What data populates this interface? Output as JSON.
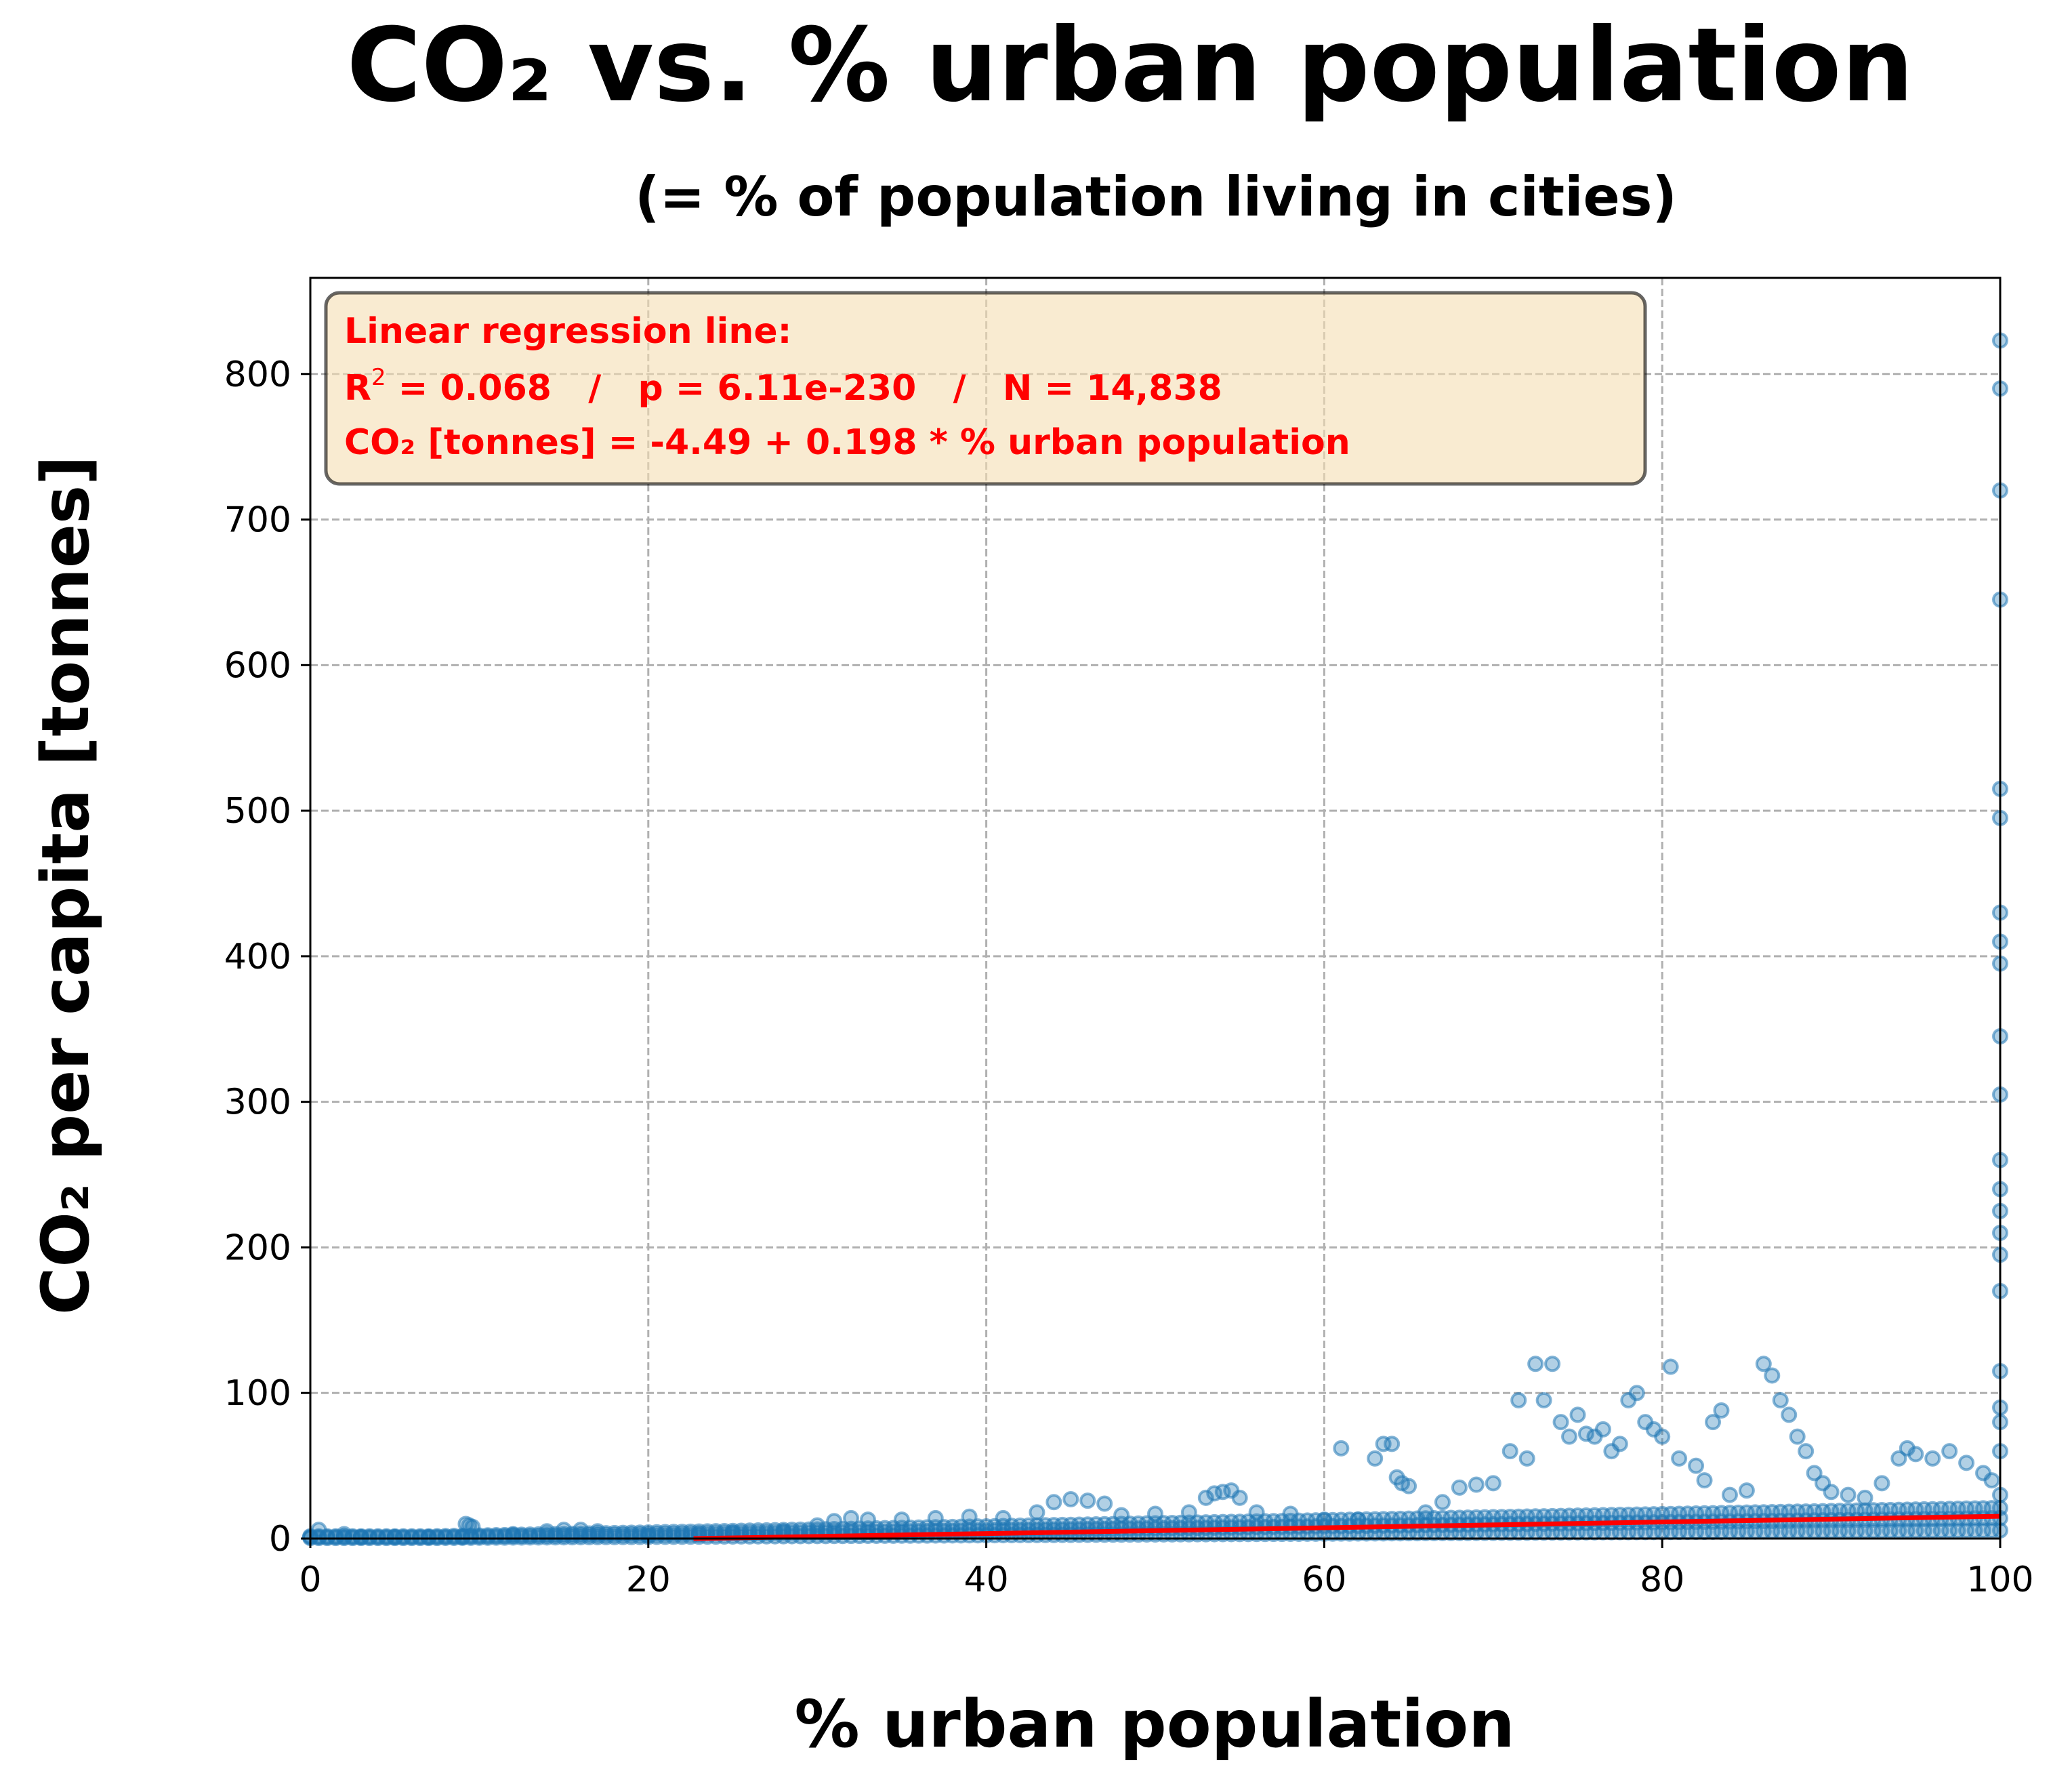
{
  "chart_data": {
    "type": "scatter",
    "title": "CO₂ vs. % urban population",
    "subtitle": "(= % of population living in cities)",
    "xlabel": "% urban population",
    "ylabel": "CO₂ per capita [tonnes]",
    "xlim": [
      0,
      100
    ],
    "ylim": [
      0,
      866
    ],
    "x_ticks": [
      0,
      20,
      40,
      60,
      80,
      100
    ],
    "y_ticks": [
      0,
      100,
      200,
      300,
      400,
      500,
      600,
      700,
      800
    ],
    "grid": true,
    "colors": {
      "points": "#1f77b4",
      "regression": "#ff0000",
      "annotation": "#ff0000",
      "annotation_box": "#f5deb3"
    },
    "annotation": {
      "line1": "Linear regression line:",
      "line2_prefix": "R",
      "line2_sup": "2",
      "line2_rest": " = 0.068   /   p = 6.11e-230   /   N = 14,838",
      "line3": "CO₂ [tonnes] = -4.49 + 0.198 * % urban population",
      "placement": "top-left"
    },
    "regression": {
      "intercept": -4.49,
      "slope": 0.198
    },
    "series": [
      {
        "values": [
          [
            0.5,
            6
          ],
          [
            2,
            3
          ],
          [
            3,
            1
          ],
          [
            5,
            1
          ],
          [
            7,
            1
          ],
          [
            9,
            1
          ],
          [
            9.2,
            10
          ],
          [
            9.4,
            9
          ],
          [
            9.6,
            8
          ],
          [
            12,
            3
          ],
          [
            14,
            5
          ],
          [
            15,
            6
          ],
          [
            16,
            6
          ],
          [
            17,
            5
          ],
          [
            20,
            2
          ],
          [
            23,
            3
          ],
          [
            25,
            4
          ],
          [
            28,
            5
          ],
          [
            30,
            9
          ],
          [
            31,
            12
          ],
          [
            32,
            14
          ],
          [
            33,
            13
          ],
          [
            35,
            13
          ],
          [
            37,
            14
          ],
          [
            39,
            15
          ],
          [
            41,
            14
          ],
          [
            43,
            18
          ],
          [
            44,
            25
          ],
          [
            45,
            27
          ],
          [
            46,
            26
          ],
          [
            47,
            24
          ],
          [
            48,
            16
          ],
          [
            50,
            17
          ],
          [
            52,
            18
          ],
          [
            53,
            28
          ],
          [
            53.5,
            31
          ],
          [
            54,
            32
          ],
          [
            54.5,
            33
          ],
          [
            55,
            28
          ],
          [
            56,
            18
          ],
          [
            58,
            17
          ],
          [
            60,
            13
          ],
          [
            61,
            62
          ],
          [
            62,
            13
          ],
          [
            63,
            55
          ],
          [
            63.5,
            65
          ],
          [
            64,
            65
          ],
          [
            64.3,
            42
          ],
          [
            64.6,
            38
          ],
          [
            65,
            36
          ],
          [
            66,
            18
          ],
          [
            67,
            25
          ],
          [
            68,
            35
          ],
          [
            69,
            37
          ],
          [
            70,
            38
          ],
          [
            71,
            60
          ],
          [
            71.5,
            95
          ],
          [
            72,
            55
          ],
          [
            72.5,
            120
          ],
          [
            73,
            95
          ],
          [
            73.5,
            120
          ],
          [
            74,
            80
          ],
          [
            74.5,
            70
          ],
          [
            75,
            85
          ],
          [
            75.5,
            72
          ],
          [
            76,
            70
          ],
          [
            76.5,
            75
          ],
          [
            77,
            60
          ],
          [
            77.5,
            65
          ],
          [
            78,
            95
          ],
          [
            78.5,
            100
          ],
          [
            79,
            80
          ],
          [
            79.5,
            75
          ],
          [
            80,
            70
          ],
          [
            80.5,
            118
          ],
          [
            81,
            55
          ],
          [
            82,
            50
          ],
          [
            82.5,
            40
          ],
          [
            83,
            80
          ],
          [
            83.5,
            88
          ],
          [
            84,
            30
          ],
          [
            85,
            33
          ],
          [
            86,
            120
          ],
          [
            86.5,
            112
          ],
          [
            87,
            95
          ],
          [
            87.5,
            85
          ],
          [
            88,
            70
          ],
          [
            88.5,
            60
          ],
          [
            89,
            45
          ],
          [
            89.5,
            38
          ],
          [
            90,
            32
          ],
          [
            91,
            30
          ],
          [
            92,
            28
          ],
          [
            93,
            38
          ],
          [
            94,
            55
          ],
          [
            94.5,
            62
          ],
          [
            95,
            58
          ],
          [
            96,
            55
          ],
          [
            97,
            60
          ],
          [
            98,
            52
          ],
          [
            99,
            45
          ],
          [
            99.5,
            40
          ],
          [
            100,
            823
          ],
          [
            100,
            790
          ],
          [
            100,
            720
          ],
          [
            100,
            645
          ],
          [
            100,
            515
          ],
          [
            100,
            495
          ],
          [
            100,
            430
          ],
          [
            100,
            410
          ],
          [
            100,
            395
          ],
          [
            100,
            345
          ],
          [
            100,
            305
          ],
          [
            100,
            260
          ],
          [
            100,
            240
          ],
          [
            100,
            225
          ],
          [
            100,
            210
          ],
          [
            100,
            195
          ],
          [
            100,
            170
          ],
          [
            100,
            115
          ],
          [
            100,
            90
          ],
          [
            100,
            80
          ],
          [
            100,
            60
          ],
          [
            100,
            30
          ]
        ]
      }
    ]
  }
}
